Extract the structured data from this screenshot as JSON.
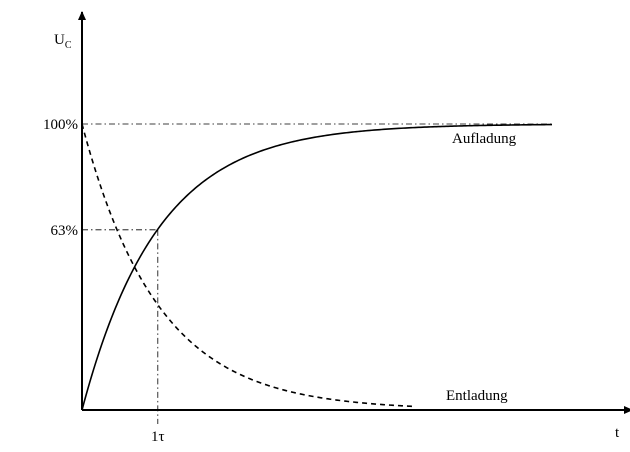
{
  "chart_data": {
    "type": "line",
    "ylabel": {
      "main": "U",
      "sub": "C"
    },
    "xlabel": "t",
    "y_ticks": [
      {
        "value": 100,
        "label": "100%"
      },
      {
        "value": 63,
        "label": "63%"
      }
    ],
    "x_ticks": [
      {
        "value": 1,
        "label": "1τ"
      }
    ],
    "xlim": [
      0,
      6.2
    ],
    "ylim": [
      0,
      100
    ],
    "grid": false,
    "series": [
      {
        "name": "Aufladung",
        "style": "solid",
        "formula": "100 * (1 - exp(-t))",
        "x": [
          0,
          0.25,
          0.5,
          0.75,
          1,
          1.5,
          2,
          2.5,
          3,
          3.5,
          4,
          4.5,
          5,
          5.5,
          6,
          6.2
        ],
        "y": [
          0,
          22.1,
          39.3,
          52.8,
          63.2,
          77.7,
          86.5,
          91.8,
          95.0,
          97.0,
          98.2,
          98.9,
          99.3,
          99.6,
          99.8,
          99.8
        ]
      },
      {
        "name": "Entladung",
        "style": "dashed",
        "formula": "100 * exp(-t)",
        "x": [
          0,
          0.25,
          0.5,
          0.75,
          1,
          1.5,
          2,
          2.5,
          3,
          3.5,
          4
        ],
        "y": [
          100,
          77.9,
          60.7,
          47.2,
          36.8,
          22.3,
          13.5,
          8.2,
          5.0,
          3.0,
          1.8
        ]
      }
    ]
  }
}
